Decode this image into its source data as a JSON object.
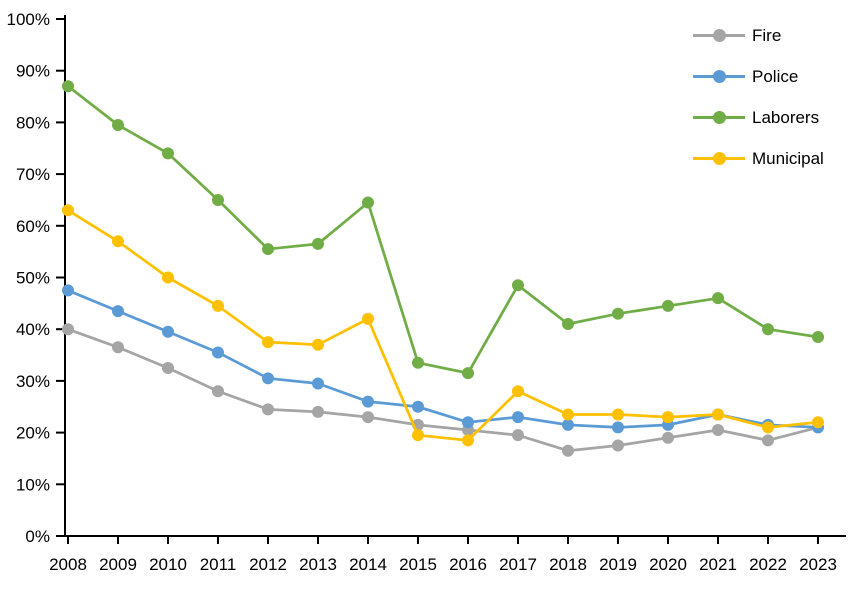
{
  "chart_data": {
    "type": "line",
    "title": "",
    "xlabel": "",
    "ylabel": "",
    "categories": [
      "2008",
      "2009",
      "2010",
      "2011",
      "2012",
      "2013",
      "2014",
      "2015",
      "2016",
      "2017",
      "2018",
      "2019",
      "2020",
      "2021",
      "2022",
      "2023"
    ],
    "series": [
      {
        "name": "Fire",
        "color": "#A5A5A5",
        "values": [
          40,
          36.5,
          32.5,
          28,
          24.5,
          24,
          23,
          21.5,
          20.5,
          19.5,
          16.5,
          17.5,
          19,
          20.5,
          18.5,
          21
        ]
      },
      {
        "name": "Police",
        "color": "#5B9BD5",
        "values": [
          47.5,
          43.5,
          39.5,
          35.5,
          30.5,
          29.5,
          26,
          25,
          22,
          23,
          21.5,
          21,
          21.5,
          23.5,
          21.5,
          21
        ]
      },
      {
        "name": "Laborers",
        "color": "#70AD47",
        "values": [
          87,
          79.5,
          74,
          65,
          55.5,
          56.5,
          64.5,
          33.5,
          31.5,
          48.5,
          41,
          43,
          44.5,
          46,
          40,
          38.5
        ]
      },
      {
        "name": "Municipal",
        "color": "#FFC000",
        "values": [
          63,
          57,
          50,
          44.5,
          37.5,
          37,
          42,
          19.5,
          18.5,
          28,
          23.5,
          23.5,
          23,
          23.5,
          21,
          22
        ]
      }
    ],
    "ylim": [
      0,
      100
    ],
    "ytick_step": 10,
    "ytick_suffix": "%",
    "grid": false,
    "legend_position": "top-right",
    "axis_color": "#000000",
    "tick_label_color": "#000000"
  }
}
